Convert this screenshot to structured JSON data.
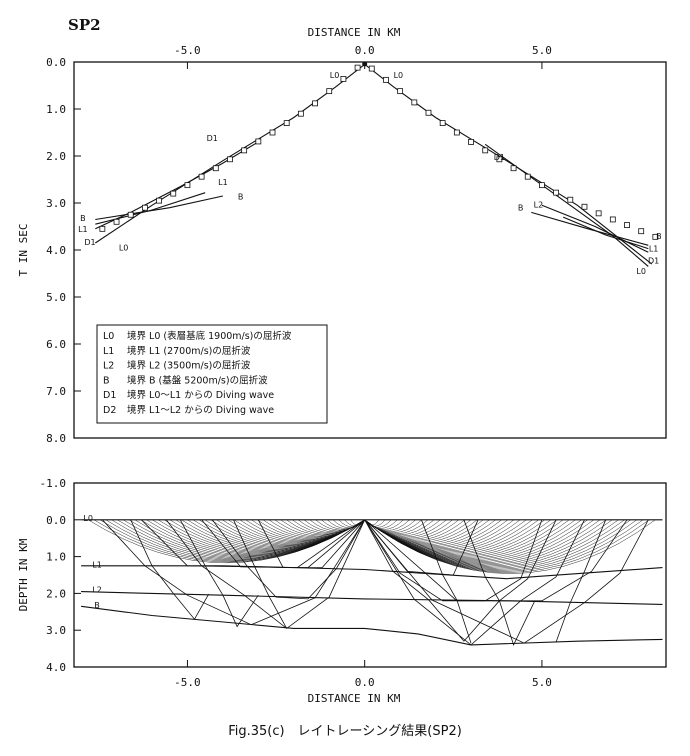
{
  "figure": {
    "panel_label": "SP2",
    "caption": "Fig.35(c)　レイトレーシング結果(SP2)"
  },
  "chart_data": [
    {
      "type": "scatter",
      "panel": "travel-time",
      "xlabel": "DISTANCE IN KM",
      "ylabel": "T IN SEC",
      "xlim": [
        -8.2,
        8.5
      ],
      "ylim": [
        8.0,
        0.0
      ],
      "x_axis_position": "top",
      "y_inverted": true,
      "x_ticks": [
        "-5.0",
        "0.0",
        "5.0"
      ],
      "y_ticks": [
        "0.0",
        "1.0",
        "2.0",
        "3.0",
        "4.0",
        "5.0",
        "6.0",
        "7.0",
        "8.0"
      ],
      "observed": {
        "marker": "square",
        "x": [
          -7.4,
          -7.0,
          -6.6,
          -6.2,
          -5.8,
          -5.4,
          -5.0,
          -4.6,
          -4.2,
          -3.8,
          -3.4,
          -3.0,
          -2.6,
          -2.2,
          -1.8,
          -1.4,
          -1.0,
          -0.6,
          -0.2,
          0.2,
          0.6,
          1.0,
          1.4,
          1.8,
          2.2,
          2.6,
          3.0,
          3.4,
          3.8,
          4.2,
          4.6,
          5.0,
          5.4,
          5.8,
          6.2,
          6.6,
          7.0,
          7.4,
          7.8,
          8.2
        ],
        "y": [
          3.55,
          3.4,
          3.25,
          3.1,
          2.95,
          2.8,
          2.62,
          2.44,
          2.26,
          2.07,
          1.88,
          1.69,
          1.5,
          1.3,
          1.1,
          0.88,
          0.62,
          0.36,
          0.12,
          0.14,
          0.38,
          0.62,
          0.86,
          1.08,
          1.3,
          1.5,
          1.7,
          1.88,
          2.07,
          2.26,
          2.44,
          2.62,
          2.78,
          2.93,
          3.08,
          3.22,
          3.35,
          3.47,
          3.6,
          3.72
        ]
      },
      "series": [
        {
          "name": "L0",
          "x": [
            -7.6,
            -6.0,
            -4.0,
            -2.0,
            -0.8,
            0.0,
            0.8,
            2.0,
            4.0,
            6.0,
            8.1
          ],
          "y": [
            3.85,
            3.05,
            2.1,
            1.18,
            0.52,
            0.05,
            0.52,
            1.18,
            2.1,
            3.05,
            4.3
          ]
        },
        {
          "name": "D1",
          "x": [
            -7.6,
            -6.6,
            -5.2,
            -4.0,
            -3.0
          ],
          "y": [
            3.55,
            3.2,
            2.65,
            2.15,
            1.7
          ]
        },
        {
          "name": "D1",
          "x": [
            3.4,
            4.6,
            5.8,
            7.0,
            8.0
          ],
          "y": [
            1.75,
            2.4,
            3.05,
            3.7,
            4.35
          ]
        },
        {
          "name": "L1",
          "x": [
            -7.6,
            -6.0,
            -4.5
          ],
          "y": [
            3.45,
            3.15,
            2.78
          ]
        },
        {
          "name": "L1",
          "x": [
            5.0,
            6.5,
            8.0
          ],
          "y": [
            3.05,
            3.5,
            4.05
          ]
        },
        {
          "name": "L2",
          "x": [
            5.6,
            6.8,
            8.0
          ],
          "y": [
            3.3,
            3.68,
            3.97
          ]
        },
        {
          "name": "B",
          "x": [
            -7.6,
            -5.5,
            -4.0
          ],
          "y": [
            3.35,
            3.1,
            2.85
          ]
        },
        {
          "name": "B",
          "x": [
            4.7,
            6.3,
            8.0
          ],
          "y": [
            3.2,
            3.55,
            3.9
          ]
        }
      ],
      "annotations": [
        {
          "text": "L0",
          "x": -0.85,
          "y": 0.28
        },
        {
          "text": "L0",
          "x": 0.95,
          "y": 0.28
        },
        {
          "text": "D1",
          "x": -4.3,
          "y": 1.62
        },
        {
          "text": "D1",
          "x": 3.8,
          "y": 2.02
        },
        {
          "text": "L1",
          "x": -4.0,
          "y": 2.55
        },
        {
          "text": "B",
          "x": -3.5,
          "y": 2.86
        },
        {
          "text": "B",
          "x": 4.4,
          "y": 3.1
        },
        {
          "text": "L2",
          "x": 4.9,
          "y": 3.03
        },
        {
          "text": "B",
          "x": -7.95,
          "y": 3.32
        },
        {
          "text": "L1",
          "x": -7.95,
          "y": 3.55
        },
        {
          "text": "D1",
          "x": -7.75,
          "y": 3.83
        },
        {
          "text": "L0",
          "x": -6.8,
          "y": 3.95
        },
        {
          "text": "B",
          "x": 8.3,
          "y": 3.7
        },
        {
          "text": "L1",
          "x": 8.15,
          "y": 3.97
        },
        {
          "text": "D1",
          "x": 8.15,
          "y": 4.22
        },
        {
          "text": "L0",
          "x": 7.8,
          "y": 4.45
        }
      ],
      "legend": {
        "placement": "bottom-left",
        "entries": [
          {
            "code": "L0",
            "text": "境界 L0 (表層基底  1900m/s)の屈折波"
          },
          {
            "code": "L1",
            "text": "境界 L1 (2700m/s)の屈折波"
          },
          {
            "code": "L2",
            "text": "境界 L2 (3500m/s)の屈折波"
          },
          {
            "code": "B",
            "text": "境界 B (基盤 5200m/s)の屈折波"
          },
          {
            "code": "D1",
            "text": "境界 L0〜L1 からの Diving wave"
          },
          {
            "code": "D2",
            "text": "境界 L1〜L2 からの Diving wave"
          }
        ]
      }
    },
    {
      "type": "line",
      "panel": "ray-paths",
      "xlabel": "DISTANCE IN KM",
      "ylabel": "DEPTH IN KM",
      "xlim": [
        -8.2,
        8.5
      ],
      "ylim": [
        4.0,
        -1.0
      ],
      "y_inverted": true,
      "x_ticks": [
        "-5.0",
        "0.0",
        "5.0"
      ],
      "y_ticks": [
        "-1.0",
        "0.0",
        "1.0",
        "2.0",
        "3.0",
        "4.0"
      ],
      "source": {
        "x": 0.0,
        "depth": 0.0
      },
      "boundaries": [
        {
          "name": "L0",
          "x": [
            -8.0,
            -4.0,
            0.0,
            4.0,
            8.4
          ],
          "depth": [
            0.0,
            0.0,
            0.0,
            0.0,
            0.0
          ]
        },
        {
          "name": "L1",
          "x": [
            -8.0,
            -4.0,
            0.0,
            4.0,
            8.4
          ],
          "depth": [
            1.25,
            1.25,
            1.35,
            1.6,
            1.3
          ]
        },
        {
          "name": "L2",
          "x": [
            -8.0,
            -4.0,
            0.0,
            4.0,
            8.4
          ],
          "depth": [
            1.95,
            2.05,
            2.15,
            2.2,
            2.3
          ]
        },
        {
          "name": "B",
          "x": [
            -8.0,
            -6.0,
            -2.0,
            0.0,
            1.5,
            3.0,
            6.0,
            8.4
          ],
          "depth": [
            2.35,
            2.6,
            2.95,
            2.95,
            3.1,
            3.4,
            3.3,
            3.25
          ]
        }
      ],
      "boundary_labels": [
        {
          "text": "L0",
          "x": -7.8,
          "depth": -0.05
        },
        {
          "text": "L1",
          "x": -7.55,
          "depth": 1.22
        },
        {
          "text": "L2",
          "x": -7.55,
          "depth": 1.9
        },
        {
          "text": "B",
          "x": -7.55,
          "depth": 2.32
        }
      ]
    }
  ]
}
